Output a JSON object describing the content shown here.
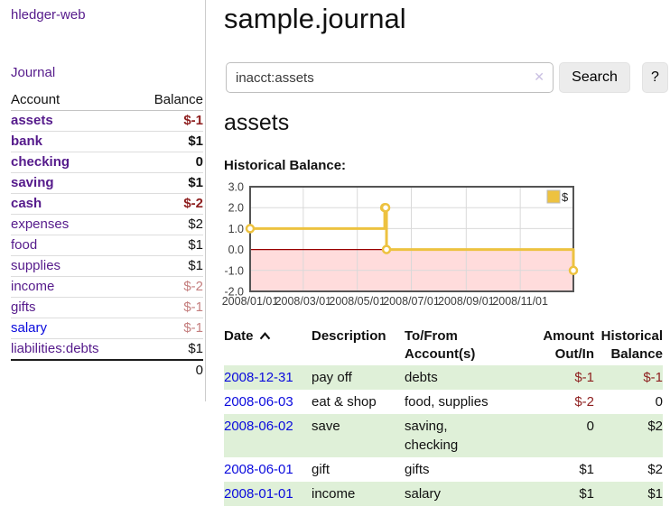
{
  "brand": "hledger-web",
  "header": {
    "title": "sample.journal"
  },
  "search": {
    "value": "inacct:assets",
    "clear_icon": "✕",
    "button_label": "Search",
    "help_label": "?"
  },
  "sidebar": {
    "journal_link": "Journal",
    "accounts": {
      "headers": {
        "account": "Account",
        "balance": "Balance"
      },
      "rows": [
        {
          "name": "assets",
          "balance": "$-1",
          "indent": 0,
          "emphasized": true,
          "balance_class": "neg-strong",
          "link_color": "purple"
        },
        {
          "name": "bank",
          "balance": "$1",
          "indent": 1,
          "emphasized": true,
          "balance_class": "pos",
          "link_color": "purple"
        },
        {
          "name": "checking",
          "balance": "0",
          "indent": 2,
          "emphasized": true,
          "balance_class": "pos",
          "link_color": "purple"
        },
        {
          "name": "saving",
          "balance": "$1",
          "indent": 2,
          "emphasized": true,
          "balance_class": "pos",
          "link_color": "purple"
        },
        {
          "name": "cash",
          "balance": "$-2",
          "indent": 1,
          "emphasized": true,
          "balance_class": "neg-strong",
          "link_color": "purple"
        },
        {
          "name": "expenses",
          "balance": "$2",
          "indent": 0,
          "emphasized": false,
          "balance_class": "pos",
          "link_color": "purple"
        },
        {
          "name": "food",
          "balance": "$1",
          "indent": 1,
          "emphasized": false,
          "balance_class": "pos",
          "link_color": "purple"
        },
        {
          "name": "supplies",
          "balance": "$1",
          "indent": 1,
          "emphasized": false,
          "balance_class": "pos",
          "link_color": "purple"
        },
        {
          "name": "income",
          "balance": "$-2",
          "indent": 0,
          "emphasized": false,
          "balance_class": "neg-faded",
          "link_color": "purple"
        },
        {
          "name": "gifts",
          "balance": "$-1",
          "indent": 1,
          "emphasized": false,
          "balance_class": "neg-faded",
          "link_color": "purple"
        },
        {
          "name": "salary",
          "balance": "$-1",
          "indent": 1,
          "emphasized": false,
          "balance_class": "neg-faded",
          "link_color": "blue"
        },
        {
          "name": "liabilities:debts",
          "balance": "$1",
          "indent": 0,
          "emphasized": false,
          "balance_class": "pos",
          "link_color": "purple"
        }
      ],
      "total": "0"
    }
  },
  "account_page": {
    "heading": "assets",
    "chart_label": "Historical Balance:"
  },
  "chart_data": {
    "type": "line",
    "title": "Historical Balance",
    "step": "after",
    "series": [
      {
        "name": "$",
        "color": "#edc240",
        "x_dates": [
          "2008-01-01",
          "2008-06-01",
          "2008-06-02",
          "2008-06-03",
          "2008-12-31"
        ],
        "x_days": [
          0,
          152,
          153,
          154,
          365
        ],
        "values": [
          1,
          2,
          2,
          0,
          -1
        ]
      }
    ],
    "ylim": [
      -2,
      3
    ],
    "x_range_days": [
      0,
      365
    ],
    "y_ticks": [
      "3.0",
      "2.0",
      "1.0",
      "0.0",
      "-1.0",
      "-2.0"
    ],
    "x_tick_days": [
      0,
      60,
      121,
      182,
      244,
      305
    ],
    "x_tick_labels": [
      "2008/01/01",
      "2008/03/01",
      "2008/05/01",
      "2008/07/01",
      "2008/09/01",
      "2008/11/01"
    ],
    "grid": true,
    "legend_position": "top-right",
    "negative_region_color": "#ffdcdc",
    "zero_line_color": "#990000",
    "frame_color": "#545454",
    "gridline_color": "#d9d9d9"
  },
  "register": {
    "headers": {
      "date": "Date",
      "description": "Description",
      "accounts": "To/From Account(s)",
      "amount": "Amount Out/In",
      "balance": "Historical Balance"
    },
    "sort_direction": "ascending",
    "rows": [
      {
        "date": "2008-12-31",
        "description": "pay off",
        "accounts": "debts",
        "amount": "$-1",
        "amount_negative": true,
        "balance": "$-1",
        "balance_negative": true
      },
      {
        "date": "2008-06-03",
        "description": "eat & shop",
        "accounts": "food, supplies",
        "amount": "$-2",
        "amount_negative": true,
        "balance": "0",
        "balance_negative": false
      },
      {
        "date": "2008-06-02",
        "description": "save",
        "accounts": "saving, checking",
        "amount": "0",
        "amount_negative": false,
        "balance": "$2",
        "balance_negative": false
      },
      {
        "date": "2008-06-01",
        "description": "gift",
        "accounts": "gifts",
        "amount": "$1",
        "amount_negative": false,
        "balance": "$2",
        "balance_negative": false
      },
      {
        "date": "2008-01-01",
        "description": "income",
        "accounts": "salary",
        "amount": "$1",
        "amount_negative": false,
        "balance": "$1",
        "balance_negative": false
      }
    ]
  },
  "colors": {
    "link_purple": "#551a8b",
    "link_blue": "#0a0add",
    "negative_strong": "#8e1f1f",
    "negative_faded": "#c47e7e",
    "row_stripe_green": "#dff0d8",
    "chart_line_gold": "#edc240",
    "negative_region_pink": "#ffdcdc",
    "zero_line_red": "#990000"
  }
}
